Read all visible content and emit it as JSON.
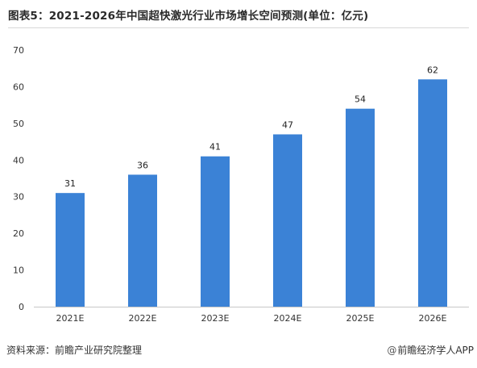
{
  "title": "图表5：2021-2026年中国超快激光行业市场增长空间预测(单位：亿元)",
  "chart_data": {
    "type": "bar",
    "categories": [
      "2021E",
      "2022E",
      "2023E",
      "2024E",
      "2025E",
      "2026E"
    ],
    "values": [
      31,
      36,
      41,
      47,
      54,
      62
    ],
    "ylim": [
      0,
      70
    ],
    "yticks": [
      0,
      10,
      20,
      30,
      40,
      50,
      60,
      70
    ],
    "grid": false,
    "data_labels": true,
    "bar_color": "#3b82d6"
  },
  "footer": {
    "source": "资料来源：前瞻产业研究院整理",
    "brand_at": "@",
    "brand": "前瞻经济学人APP"
  }
}
